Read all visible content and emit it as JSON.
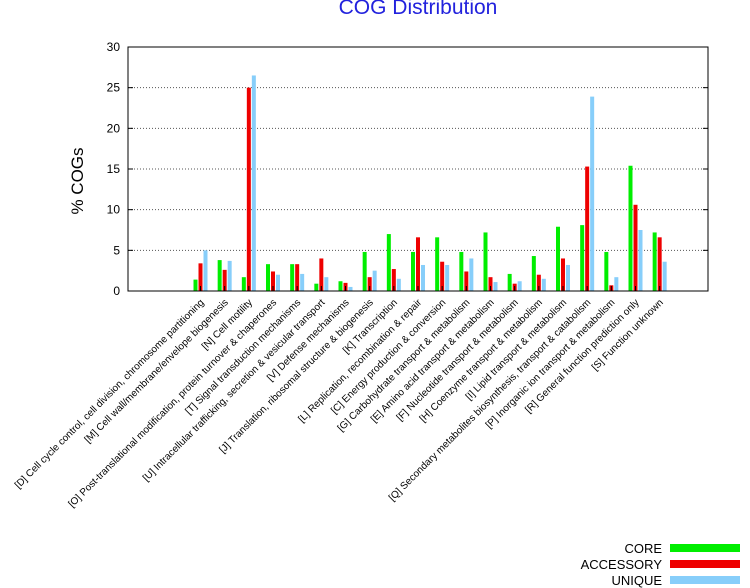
{
  "chart_data": {
    "type": "bar",
    "title": "COG Distribution",
    "xlabel": "",
    "ylabel": "% COGs",
    "ylim": [
      0,
      30
    ],
    "yticks": [
      0,
      5,
      10,
      15,
      20,
      25,
      30
    ],
    "grid": "horizontal dotted",
    "legend_position": "bottom-right",
    "categories": [
      "[D] Cell cycle control, cell division, chromosome partitioning",
      "[M] Cell wall/membrane/envelope biogenesis",
      "[N] Cell motility",
      "[O] Post-translational modification, protein turnover & chaperones",
      "[T] Signal transduction mechanisms",
      "[U] Intracellular trafficking, secretion & vesicular transport",
      "[V] Defense mechanisms",
      "[J] Translation, ribosomal structure & biogenesis",
      "[K] Transcription",
      "[L] Replication, recombination & repair",
      "[C] Energy production & conversion",
      "[G] Carbohydrate transport & metabolism",
      "[E] Amino acid transport & metabolism",
      "[F] Nucleotide transport & metabolism",
      "[H] Coenzyme transport & metabolism",
      "[I] Lipid transport & metabolism",
      "[Q] Secondary metabolites biosynthesis, transport & catabolism",
      "[P] Inorganic ion transport & metabolism",
      "[R] General function prediction only",
      "[S] Function unknown"
    ],
    "series": [
      {
        "name": "CORE",
        "color": "#00ee00",
        "values": [
          1.4,
          3.8,
          1.7,
          3.3,
          3.3,
          0.9,
          1.2,
          4.8,
          7.0,
          4.8,
          6.6,
          4.8,
          7.2,
          2.1,
          4.3,
          7.9,
          8.1,
          4.8,
          15.4,
          7.2
        ]
      },
      {
        "name": "ACCESSORY",
        "color": "#ee0000",
        "values": [
          3.4,
          2.6,
          25.0,
          2.4,
          3.3,
          4.0,
          1.0,
          1.7,
          2.7,
          6.6,
          3.6,
          2.4,
          1.7,
          0.9,
          2.0,
          4.0,
          15.3,
          0.7,
          10.6,
          6.6
        ]
      },
      {
        "name": "UNIQUE",
        "color": "#87cefa",
        "values": [
          5.0,
          3.7,
          26.5,
          2.0,
          2.1,
          1.7,
          0.5,
          2.5,
          1.5,
          3.2,
          3.2,
          4.0,
          1.1,
          1.2,
          1.5,
          3.2,
          23.9,
          1.7,
          7.5,
          3.6
        ]
      }
    ]
  }
}
